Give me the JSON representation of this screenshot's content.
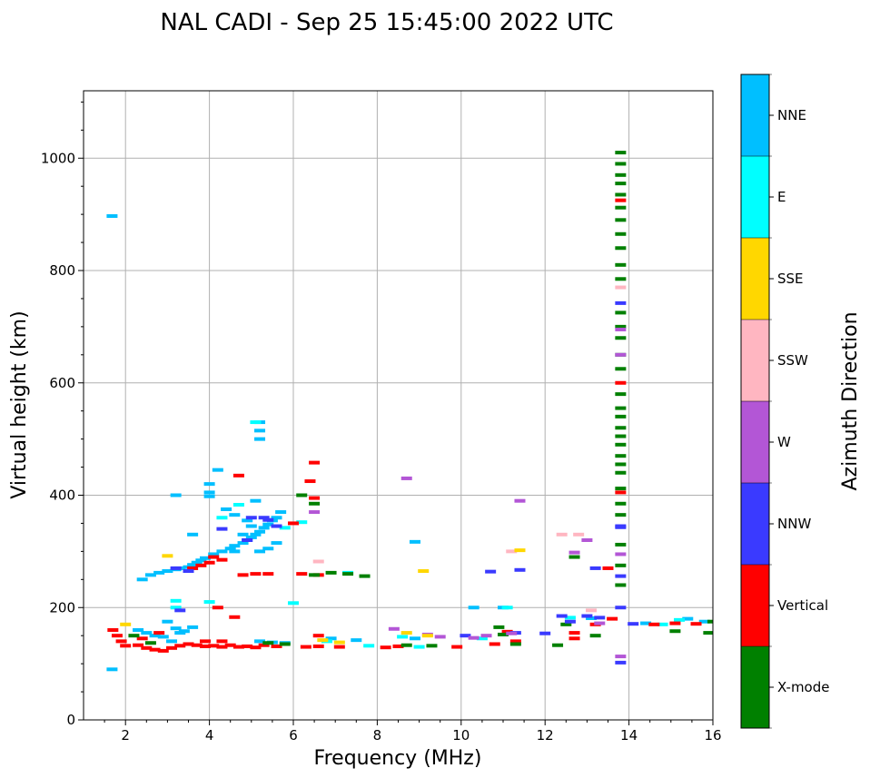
{
  "chart_data": {
    "type": "scatter",
    "title": "NAL CADI - Sep 25 15:45:00 2022 UTC",
    "xlabel": "Frequency (MHz)",
    "ylabel": "Virtual height (km)",
    "xlim": [
      1,
      16
    ],
    "ylim": [
      0,
      1120
    ],
    "xticks": [
      2,
      4,
      6,
      8,
      10,
      12,
      14,
      16
    ],
    "yticks": [
      0,
      200,
      400,
      600,
      800,
      1000
    ],
    "grid": true,
    "colorbar": {
      "label": "Azimuth Direction",
      "categories": [
        {
          "name": "X-mode",
          "color": "#008000"
        },
        {
          "name": "Vertical",
          "color": "#ff0000"
        },
        {
          "name": "NNW",
          "color": "#3a3aff"
        },
        {
          "name": "W",
          "color": "#b356d6"
        },
        {
          "name": "SSW",
          "color": "#ffb6c1"
        },
        {
          "name": "SSE",
          "color": "#ffd700"
        },
        {
          "name": "E",
          "color": "#00ffff"
        },
        {
          "name": "NNE",
          "color": "#00bfff"
        }
      ]
    },
    "series": [
      {
        "name": "NNE",
        "points": [
          [
            1.68,
            897
          ],
          [
            1.68,
            90
          ],
          [
            2.4,
            250
          ],
          [
            2.6,
            258
          ],
          [
            2.8,
            262
          ],
          [
            3.0,
            265
          ],
          [
            3.2,
            268
          ],
          [
            3.3,
            270
          ],
          [
            3.5,
            272
          ],
          [
            3.6,
            276
          ],
          [
            3.7,
            280
          ],
          [
            3.8,
            284
          ],
          [
            3.9,
            288
          ],
          [
            4.1,
            295
          ],
          [
            4.3,
            300
          ],
          [
            4.5,
            305
          ],
          [
            4.6,
            310
          ],
          [
            4.8,
            315
          ],
          [
            4.9,
            320
          ],
          [
            5.0,
            325
          ],
          [
            5.1,
            330
          ],
          [
            5.2,
            335
          ],
          [
            5.3,
            342
          ],
          [
            5.4,
            348
          ],
          [
            5.5,
            355
          ],
          [
            5.6,
            360
          ],
          [
            5.7,
            370
          ],
          [
            4.6,
            300
          ],
          [
            4.8,
            330
          ],
          [
            5.0,
            345
          ],
          [
            5.2,
            300
          ],
          [
            5.4,
            305
          ],
          [
            5.6,
            315
          ],
          [
            4.0,
            420
          ],
          [
            4.0,
            405
          ],
          [
            4.2,
            445
          ],
          [
            5.2,
            500
          ],
          [
            5.2,
            530
          ],
          [
            5.2,
            515
          ],
          [
            3.2,
            163
          ],
          [
            3.4,
            158
          ],
          [
            3.6,
            165
          ],
          [
            3.0,
            175
          ],
          [
            3.1,
            140
          ],
          [
            3.3,
            155
          ],
          [
            2.9,
            148
          ],
          [
            2.7,
            150
          ],
          [
            2.5,
            155
          ],
          [
            2.3,
            160
          ],
          [
            5.2,
            140
          ],
          [
            5.5,
            138
          ],
          [
            5.8,
            137
          ],
          [
            6.9,
            145
          ],
          [
            7.5,
            142
          ],
          [
            8.9,
            145
          ],
          [
            10.3,
            200
          ],
          [
            11.0,
            200
          ],
          [
            15.4,
            180
          ],
          [
            15.8,
            175
          ],
          [
            14.4,
            172
          ],
          [
            13.1,
            181
          ],
          [
            4.4,
            375
          ],
          [
            4.6,
            365
          ],
          [
            4.9,
            355
          ],
          [
            5.1,
            390
          ],
          [
            3.2,
            400
          ],
          [
            4.0,
            398
          ],
          [
            3.6,
            330
          ],
          [
            8.9,
            317
          ]
        ]
      },
      {
        "name": "E",
        "points": [
          [
            3.2,
            200
          ],
          [
            3.2,
            212
          ],
          [
            4.0,
            210
          ],
          [
            4.3,
            360
          ],
          [
            4.7,
            383
          ],
          [
            5.8,
            342
          ],
          [
            6.0,
            208
          ],
          [
            6.2,
            352
          ],
          [
            7.3,
            262
          ],
          [
            5.1,
            530
          ],
          [
            6.8,
            140
          ],
          [
            7.8,
            132
          ],
          [
            8.6,
            148
          ],
          [
            9.0,
            130
          ],
          [
            10.5,
            145
          ],
          [
            11.1,
            200
          ],
          [
            14.8,
            170
          ],
          [
            15.2,
            178
          ],
          [
            12.6,
            182
          ]
        ]
      },
      {
        "name": "Vertical",
        "points": [
          [
            1.7,
            160
          ],
          [
            1.8,
            150
          ],
          [
            1.9,
            140
          ],
          [
            2.0,
            132
          ],
          [
            2.3,
            133
          ],
          [
            2.5,
            128
          ],
          [
            2.7,
            125
          ],
          [
            2.9,
            123
          ],
          [
            3.1,
            128
          ],
          [
            3.3,
            132
          ],
          [
            3.5,
            135
          ],
          [
            3.7,
            133
          ],
          [
            3.9,
            131
          ],
          [
            4.1,
            132
          ],
          [
            4.3,
            130
          ],
          [
            4.5,
            133
          ],
          [
            4.7,
            130
          ],
          [
            4.9,
            131
          ],
          [
            5.1,
            129
          ],
          [
            5.3,
            133
          ],
          [
            5.6,
            131
          ],
          [
            6.3,
            130
          ],
          [
            6.6,
            131
          ],
          [
            7.1,
            130
          ],
          [
            8.2,
            129
          ],
          [
            8.5,
            131
          ],
          [
            3.6,
            270
          ],
          [
            3.8,
            275
          ],
          [
            4.0,
            280
          ],
          [
            4.1,
            290
          ],
          [
            4.3,
            285
          ],
          [
            4.8,
            258
          ],
          [
            5.1,
            260
          ],
          [
            5.4,
            260
          ],
          [
            6.2,
            260
          ],
          [
            6.6,
            258
          ],
          [
            6.5,
            395
          ],
          [
            6.4,
            425
          ],
          [
            6.5,
            458
          ],
          [
            4.2,
            200
          ],
          [
            4.6,
            183
          ],
          [
            4.3,
            140
          ],
          [
            6.6,
            150
          ],
          [
            6.0,
            350
          ],
          [
            4.7,
            435
          ],
          [
            11.1,
            157
          ],
          [
            12.7,
            155
          ],
          [
            12.7,
            145
          ],
          [
            13.2,
            170
          ],
          [
            13.5,
            270
          ],
          [
            13.6,
            180
          ],
          [
            14.6,
            170
          ],
          [
            15.1,
            172
          ],
          [
            15.6,
            171
          ],
          [
            13.8,
            600
          ],
          [
            13.8,
            925
          ],
          [
            13.8,
            405
          ],
          [
            11.3,
            140
          ],
          [
            10.8,
            135
          ],
          [
            9.9,
            130
          ],
          [
            3.9,
            140
          ],
          [
            2.8,
            155
          ],
          [
            2.4,
            145
          ]
        ]
      },
      {
        "name": "X-mode",
        "points": [
          [
            2.2,
            150
          ],
          [
            2.6,
            137
          ],
          [
            5.4,
            137
          ],
          [
            5.8,
            135
          ],
          [
            6.5,
            258
          ],
          [
            6.9,
            262
          ],
          [
            7.3,
            260
          ],
          [
            7.7,
            256
          ],
          [
            8.7,
            133
          ],
          [
            9.3,
            132
          ],
          [
            10.9,
            165
          ],
          [
            11.0,
            152
          ],
          [
            11.3,
            135
          ],
          [
            12.3,
            133
          ],
          [
            12.5,
            170
          ],
          [
            12.7,
            290
          ],
          [
            13.2,
            150
          ],
          [
            15.1,
            158
          ],
          [
            15.9,
            155
          ],
          [
            16.0,
            175
          ],
          [
            6.2,
            400
          ],
          [
            6.5,
            385
          ],
          [
            13.8,
            1010
          ],
          [
            13.8,
            990
          ],
          [
            13.8,
            970
          ],
          [
            13.8,
            955
          ],
          [
            13.8,
            935
          ],
          [
            13.8,
            912
          ],
          [
            13.8,
            890
          ],
          [
            13.8,
            865
          ],
          [
            13.8,
            840
          ],
          [
            13.8,
            810
          ],
          [
            13.8,
            785
          ],
          [
            13.8,
            725
          ],
          [
            13.8,
            700
          ],
          [
            13.8,
            680
          ],
          [
            13.8,
            650
          ],
          [
            13.8,
            625
          ],
          [
            13.8,
            580
          ],
          [
            13.8,
            555
          ],
          [
            13.8,
            540
          ],
          [
            13.8,
            520
          ],
          [
            13.8,
            505
          ],
          [
            13.8,
            490
          ],
          [
            13.8,
            470
          ],
          [
            13.8,
            455
          ],
          [
            13.8,
            440
          ],
          [
            13.8,
            412
          ],
          [
            13.8,
            385
          ],
          [
            13.8,
            365
          ],
          [
            13.8,
            312
          ],
          [
            13.8,
            275
          ],
          [
            13.8,
            240
          ]
        ]
      },
      {
        "name": "NNW",
        "points": [
          [
            3.2,
            270
          ],
          [
            3.5,
            265
          ],
          [
            4.9,
            320
          ],
          [
            5.0,
            360
          ],
          [
            5.4,
            356
          ],
          [
            5.6,
            345
          ],
          [
            10.7,
            264
          ],
          [
            11.4,
            267
          ],
          [
            12.4,
            185
          ],
          [
            12.6,
            175
          ],
          [
            13.0,
            185
          ],
          [
            13.3,
            182
          ],
          [
            13.2,
            270
          ],
          [
            13.8,
            200
          ],
          [
            13.8,
            256
          ],
          [
            13.8,
            343
          ],
          [
            13.8,
            345
          ],
          [
            13.8,
            742
          ],
          [
            13.8,
            102
          ],
          [
            10.1,
            150
          ],
          [
            11.3,
            155
          ],
          [
            12.0,
            154
          ],
          [
            14.1,
            171
          ],
          [
            3.3,
            195
          ],
          [
            4.3,
            340
          ],
          [
            5.3,
            360
          ]
        ]
      },
      {
        "name": "W",
        "points": [
          [
            6.5,
            370
          ],
          [
            8.7,
            430
          ],
          [
            10.3,
            146
          ],
          [
            10.6,
            150
          ],
          [
            11.2,
            154
          ],
          [
            11.4,
            390
          ],
          [
            12.7,
            298
          ],
          [
            13.0,
            320
          ],
          [
            13.3,
            172
          ],
          [
            13.8,
            295
          ],
          [
            13.8,
            113
          ],
          [
            13.8,
            650
          ],
          [
            13.8,
            695
          ],
          [
            9.5,
            148
          ],
          [
            8.4,
            162
          ],
          [
            9.2,
            152
          ]
        ]
      },
      {
        "name": "SSW",
        "points": [
          [
            12.4,
            330
          ],
          [
            12.8,
            330
          ],
          [
            13.8,
            770
          ],
          [
            6.6,
            282
          ],
          [
            13.1,
            195
          ],
          [
            11.2,
            300
          ]
        ]
      },
      {
        "name": "SSE",
        "points": [
          [
            9.1,
            265
          ],
          [
            11.4,
            302
          ],
          [
            8.7,
            155
          ],
          [
            9.2,
            150
          ],
          [
            6.7,
            142
          ],
          [
            7.1,
            138
          ],
          [
            3.0,
            292
          ],
          [
            2.0,
            170
          ]
        ]
      }
    ]
  }
}
